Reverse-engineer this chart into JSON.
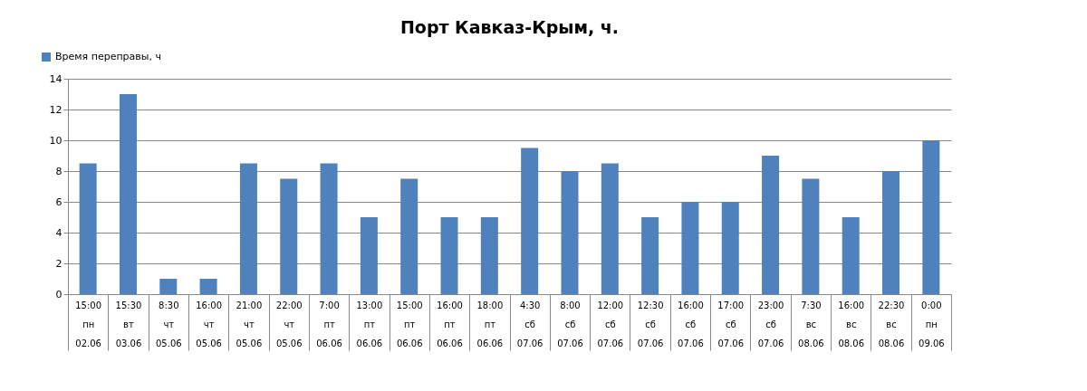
{
  "chart_data": {
    "type": "bar",
    "title": "Порт Кавказ-Крым, ч.",
    "categories": [
      "15:00\nпн\n02.06",
      "15:30\nвт\n03.06",
      "8:30\nчт\n05.06",
      "16:00\nчт\n05.06",
      "21:00\nчт\n05.06",
      "22:00\nчт\n05.06",
      "7:00\nпт\n06.06",
      "13:00\nпт\n06.06",
      "15:00\nпт\n06.06",
      "16:00\nпт\n06.06",
      "18:00\nпт\n06.06",
      "4:30\nсб\n07.06",
      "8:00\nсб\n07.06",
      "12:00\nсб\n07.06",
      "12:30\nсб\n07.06",
      "16:00\nсб\n07.06",
      "17:00\nсб\n07.06",
      "23:00\nсб\n07.06",
      "7:30\nвс\n08.06",
      "16:00\nвс\n08.06",
      "22:30\nвс\n08.06",
      "0:00\nпн\n09.06"
    ],
    "series": [
      {
        "name": "Время переправы, ч",
        "color": "#4f81bd",
        "values": [
          8.5,
          13,
          1,
          1,
          8.5,
          7.5,
          8.5,
          5,
          7.5,
          5,
          5,
          9.5,
          8,
          8.5,
          5,
          6,
          6,
          9,
          7.5,
          5,
          8,
          10
        ]
      }
    ],
    "ylim": [
      0,
      14
    ],
    "yticks": [
      0,
      2,
      4,
      6,
      8,
      10,
      12,
      14
    ],
    "grid": "y",
    "legend": "top left"
  }
}
